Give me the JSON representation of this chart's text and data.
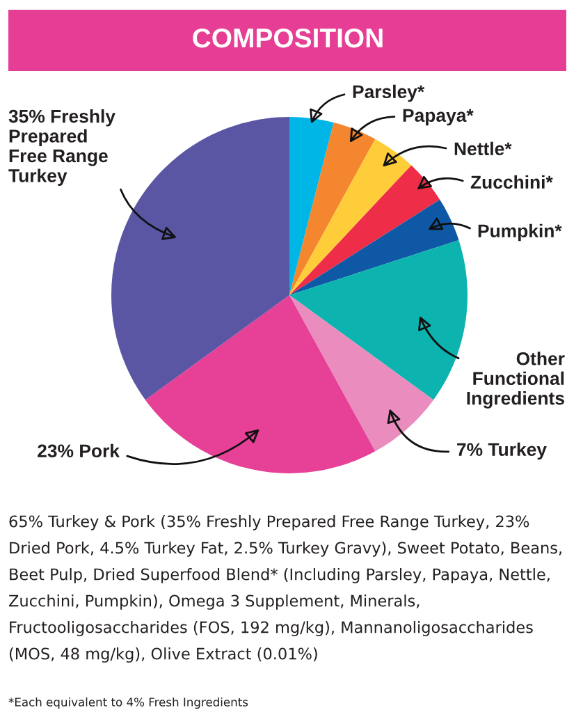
{
  "chart_data": {
    "type": "pie",
    "title": "COMPOSITION",
    "categories": [
      "Parsley*",
      "Papaya*",
      "Nettle*",
      "Zucchini*",
      "Pumpkin*",
      "Other Functional Ingredients",
      "7% Turkey",
      "23% Pork",
      "35% Freshly Prepared Free Range Turkey"
    ],
    "values": [
      4,
      4,
      4,
      4,
      4,
      15,
      7,
      23,
      35
    ],
    "colors": [
      "#00b6e6",
      "#f4862f",
      "#ffcd3a",
      "#ee2d48",
      "#0e58a6",
      "#0db4af",
      "#ea8cbd",
      "#e64097",
      "#5a56a4"
    ],
    "annotations": [
      "65% Turkey & Pork (35% Freshly Prepared Free Range Turkey, 23% Dried Pork, 4.5% Turkey Fat, 2.5% Turkey Gravy), Sweet Potato, Beans, Beet Pulp, Dried Superfood Blend* (Including Parsley, Papaya, Nettle, Zucchini, Pumpkin), Omega 3 Supplement, Minerals, Fructooligosaccharides (FOS, 192 mg/kg), Mannanoligosaccharides (MOS, 48 mg/kg), Olive Extract (0.01%)",
      "*Each equivalent to 4% Fresh Ingredients"
    ]
  }
}
